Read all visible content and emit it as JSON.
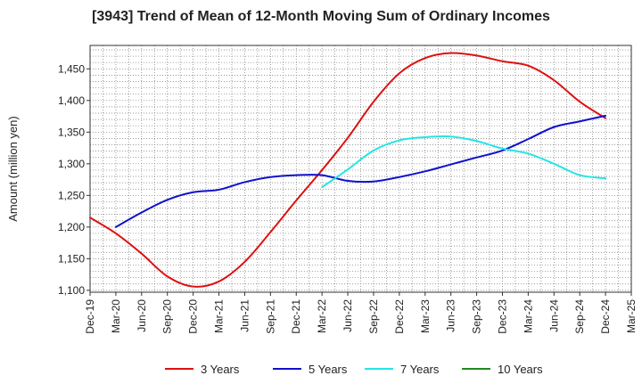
{
  "chart_data": {
    "type": "line",
    "title": "[3943]  Trend of Mean of 12-Month Moving Sum of Ordinary Incomes",
    "xlabel": "",
    "ylabel": "Amount (million yen)",
    "categories": [
      "Dec-19",
      "Mar-20",
      "Jun-20",
      "Sep-20",
      "Dec-20",
      "Mar-21",
      "Jun-21",
      "Sep-21",
      "Dec-21",
      "Mar-22",
      "Jun-22",
      "Sep-22",
      "Dec-22",
      "Mar-23",
      "Jun-23",
      "Sep-23",
      "Dec-23",
      "Mar-24",
      "Jun-24",
      "Sep-24",
      "Dec-24",
      "Mar-25"
    ],
    "yticks": [
      1100,
      1150,
      1200,
      1250,
      1300,
      1350,
      1400,
      1450
    ],
    "ytick_labels": [
      "1,100",
      "1,150",
      "1,200",
      "1,250",
      "1,300",
      "1,350",
      "1,400",
      "1,450"
    ],
    "ylim": [
      1097,
      1487
    ],
    "grid": true,
    "legend_position": "bottom",
    "series": [
      {
        "name": "3 Years",
        "color": "#dd1111",
        "values": [
          1215,
          1190,
          1158,
          1122,
          1106,
          1114,
          1145,
          1192,
          1242,
          1290,
          1341,
          1398,
          1443,
          1467,
          1475,
          1471,
          1462,
          1455,
          1432,
          1398,
          1372,
          null
        ]
      },
      {
        "name": "5 Years",
        "color": "#1111cc",
        "values": [
          null,
          1200,
          1223,
          1243,
          1255,
          1259,
          1271,
          1279,
          1282,
          1282,
          1273,
          1272,
          1279,
          1288,
          1299,
          1310,
          1321,
          1339,
          1358,
          1367,
          1376,
          null
        ]
      },
      {
        "name": "7 Years",
        "color": "#22e5e5",
        "values": [
          null,
          null,
          null,
          null,
          null,
          null,
          null,
          null,
          null,
          1263,
          1291,
          1321,
          1337,
          1342,
          1343,
          1336,
          1324,
          1316,
          1300,
          1282,
          1277,
          null
        ]
      },
      {
        "name": "10 Years",
        "color": "#228822",
        "values": [
          null,
          null,
          null,
          null,
          null,
          null,
          null,
          null,
          null,
          null,
          null,
          null,
          null,
          null,
          null,
          null,
          null,
          null,
          null,
          null,
          null,
          null
        ]
      }
    ]
  }
}
